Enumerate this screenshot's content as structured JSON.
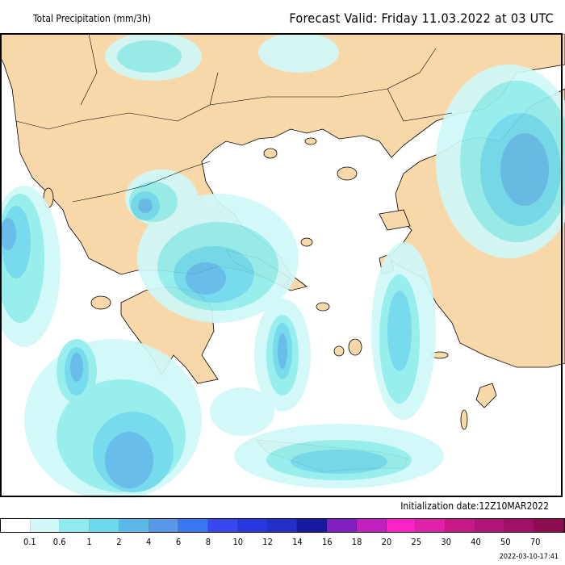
{
  "header": {
    "title": "Total Precipitation (mm/3h)",
    "forecast_valid": "Forecast Valid:  Friday 11.03.2022 at 03 UTC"
  },
  "map": {
    "land_color": "#f8d8a8",
    "sea_color": "#ffffff"
  },
  "footer": {
    "initialization": "Initialization date:12Z10MAR2022",
    "timestamp": "2022-03-10-17:41"
  },
  "legend": {
    "colors": [
      "#ffffff",
      "#d0f8f8",
      "#90ecec",
      "#6cd8ec",
      "#5cb8e8",
      "#5898e8",
      "#3878f0",
      "#3848f0",
      "#2838e0",
      "#2030c8",
      "#1818a0",
      "#8020c0",
      "#c020c0",
      "#ff20c8",
      "#e020a8",
      "#c81888",
      "#b01478",
      "#a01068",
      "#8c0c50"
    ],
    "labels": [
      "0.1",
      "0.6",
      "1",
      "2",
      "4",
      "6",
      "8",
      "10",
      "12",
      "14",
      "16",
      "18",
      "20",
      "25",
      "30",
      "40",
      "50",
      "70"
    ]
  }
}
